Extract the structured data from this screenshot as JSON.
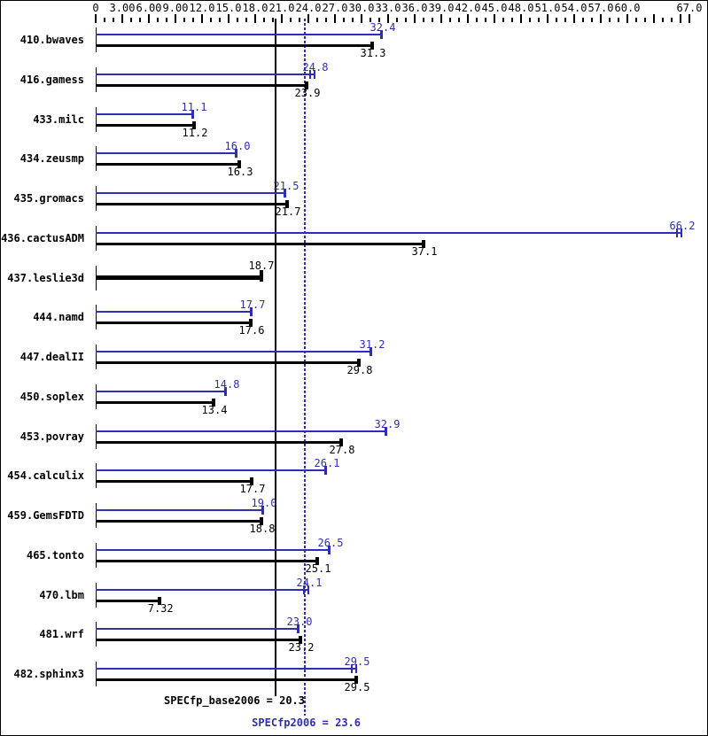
{
  "chart_data": {
    "type": "bar",
    "orientation": "horizontal",
    "title": "",
    "xlabel": "",
    "ylabel": "",
    "grid": false,
    "legend": "none",
    "colors": {
      "peak": "#2e2eb4",
      "base": "#000000",
      "background": "#ffffff"
    },
    "axis": {
      "min": 0,
      "max": 67,
      "minor_step": 1,
      "major_step": 3,
      "tick_labels": [
        {
          "v": 0,
          "t": "0"
        },
        {
          "v": 3,
          "t": "3.00"
        },
        {
          "v": 6,
          "t": "6.00"
        },
        {
          "v": 9,
          "t": "9.00"
        },
        {
          "v": 12,
          "t": "12.0"
        },
        {
          "v": 15,
          "t": "15.0"
        },
        {
          "v": 18,
          "t": "18.0"
        },
        {
          "v": 21,
          "t": "21.0"
        },
        {
          "v": 24,
          "t": "24.0"
        },
        {
          "v": 27,
          "t": "27.0"
        },
        {
          "v": 30,
          "t": "30.0"
        },
        {
          "v": 33,
          "t": "33.0"
        },
        {
          "v": 36,
          "t": "36.0"
        },
        {
          "v": 39,
          "t": "39.0"
        },
        {
          "v": 42,
          "t": "42.0"
        },
        {
          "v": 45,
          "t": "45.0"
        },
        {
          "v": 48,
          "t": "48.0"
        },
        {
          "v": 51,
          "t": "51.0"
        },
        {
          "v": 54,
          "t": "54.0"
        },
        {
          "v": 57,
          "t": "57.0"
        },
        {
          "v": 60,
          "t": "60.0"
        },
        {
          "v": 67,
          "t": "67.0"
        }
      ]
    },
    "benchmarks": [
      {
        "name": "410.bwaves",
        "peak": 32.4,
        "peak_label": "32.4",
        "base": 31.3,
        "base_label": "31.3",
        "peak_marker": "single"
      },
      {
        "name": "416.gamess",
        "peak": 24.8,
        "peak_label": "24.8",
        "base": 23.9,
        "base_label": "23.9",
        "peak_marker": "double"
      },
      {
        "name": "433.milc",
        "peak": 11.1,
        "peak_label": "11.1",
        "base": 11.2,
        "base_label": "11.2",
        "peak_marker": "single"
      },
      {
        "name": "434.zeusmp",
        "peak": 16.0,
        "peak_label": "16.0",
        "base": 16.3,
        "base_label": "16.3",
        "peak_marker": "single"
      },
      {
        "name": "435.gromacs",
        "peak": 21.5,
        "peak_label": "21.5",
        "base": 21.7,
        "base_label": "21.7",
        "peak_marker": "single"
      },
      {
        "name": "436.cactusADM",
        "peak": 66.2,
        "peak_label": "66.2",
        "base": 37.1,
        "base_label": "37.1",
        "peak_marker": "double"
      },
      {
        "name": "437.leslie3d",
        "single": 18.7,
        "single_label": "18.7"
      },
      {
        "name": "444.namd",
        "peak": 17.7,
        "peak_label": "17.7",
        "base": 17.6,
        "base_label": "17.6",
        "peak_marker": "single"
      },
      {
        "name": "447.dealII",
        "peak": 31.2,
        "peak_label": "31.2",
        "base": 29.8,
        "base_label": "29.8",
        "peak_marker": "single"
      },
      {
        "name": "450.soplex",
        "peak": 14.8,
        "peak_label": "14.8",
        "base": 13.4,
        "base_label": "13.4",
        "peak_marker": "single"
      },
      {
        "name": "453.povray",
        "peak": 32.9,
        "peak_label": "32.9",
        "base": 27.8,
        "base_label": "27.8",
        "peak_marker": "single"
      },
      {
        "name": "454.calculix",
        "peak": 26.1,
        "peak_label": "26.1",
        "base": 17.7,
        "base_label": "17.7",
        "peak_marker": "single"
      },
      {
        "name": "459.GemsFDTD",
        "peak": 19.0,
        "peak_label": "19.0",
        "base": 18.8,
        "base_label": "18.8",
        "peak_marker": "single"
      },
      {
        "name": "465.tonto",
        "peak": 26.5,
        "peak_label": "26.5",
        "base": 25.1,
        "base_label": "25.1",
        "peak_marker": "single"
      },
      {
        "name": "470.lbm",
        "peak": 24.1,
        "peak_label": "24.1",
        "base": 7.32,
        "base_label": "7.32",
        "peak_marker": "double"
      },
      {
        "name": "481.wrf",
        "peak": 23.0,
        "peak_label": "23.0",
        "base": 23.2,
        "base_label": "23.2",
        "peak_marker": "single"
      },
      {
        "name": "482.sphinx3",
        "peak": 29.5,
        "peak_label": "29.5",
        "base": 29.5,
        "base_label": "29.5",
        "peak_marker": "double"
      }
    ],
    "reference_lines": [
      {
        "name": "base_mean",
        "label": "SPECfp_base2006 = 20.3",
        "value": 20.3,
        "style": "solid",
        "color": "#000000"
      },
      {
        "name": "peak_mean",
        "label": "SPECfp2006 = 23.6",
        "value": 23.6,
        "style": "dotted",
        "color": "#2e2eb4"
      }
    ]
  }
}
